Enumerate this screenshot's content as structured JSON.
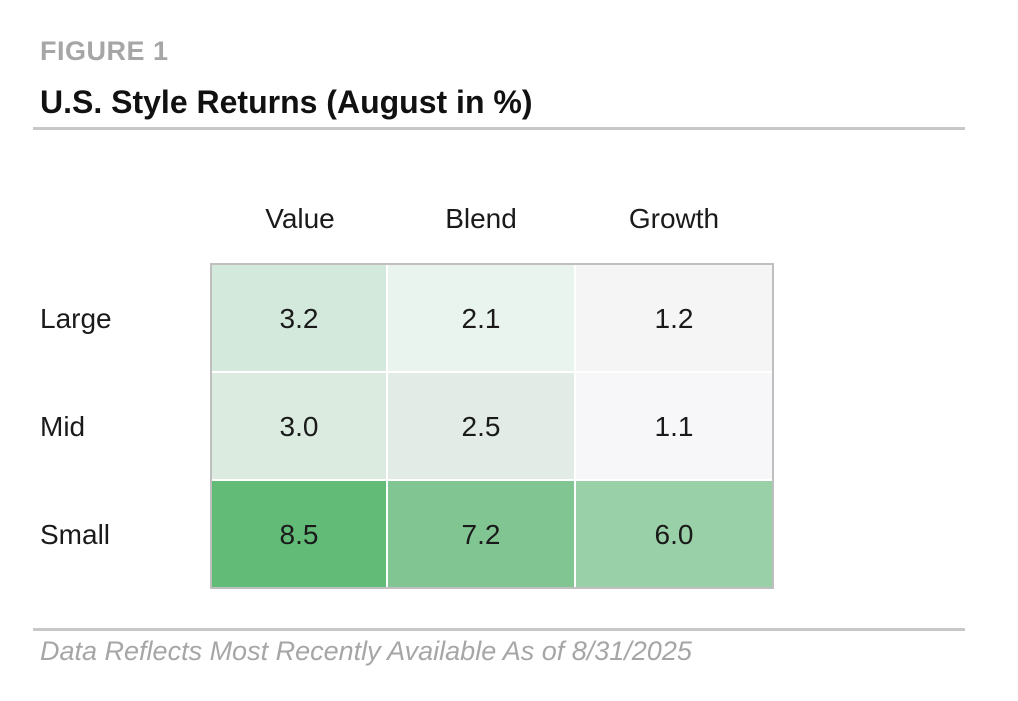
{
  "figure": {
    "label": "FIGURE 1",
    "title": "U.S. Style Returns (August in %)",
    "footnote": "Data Reflects Most Recently Available As of 8/31/2025"
  },
  "chart_data": {
    "type": "heatmap",
    "title": "U.S. Style Returns (August in %)",
    "columns": [
      "Value",
      "Blend",
      "Growth"
    ],
    "rows": [
      "Large",
      "Mid",
      "Small"
    ],
    "values": [
      [
        3.2,
        2.1,
        1.2
      ],
      [
        3.0,
        2.5,
        1.1
      ],
      [
        8.5,
        7.2,
        6.0
      ]
    ],
    "colors": [
      [
        "#d3e9dc",
        "#eaf4ee",
        "#f5f5f5"
      ],
      [
        "#dbebe0",
        "#e2ebe5",
        "#f7f7f9"
      ],
      [
        "#63bb78",
        "#81c692",
        "#99d0a7"
      ]
    ],
    "grid_color": "#ffffff",
    "border_color": "#bfbfbf"
  }
}
